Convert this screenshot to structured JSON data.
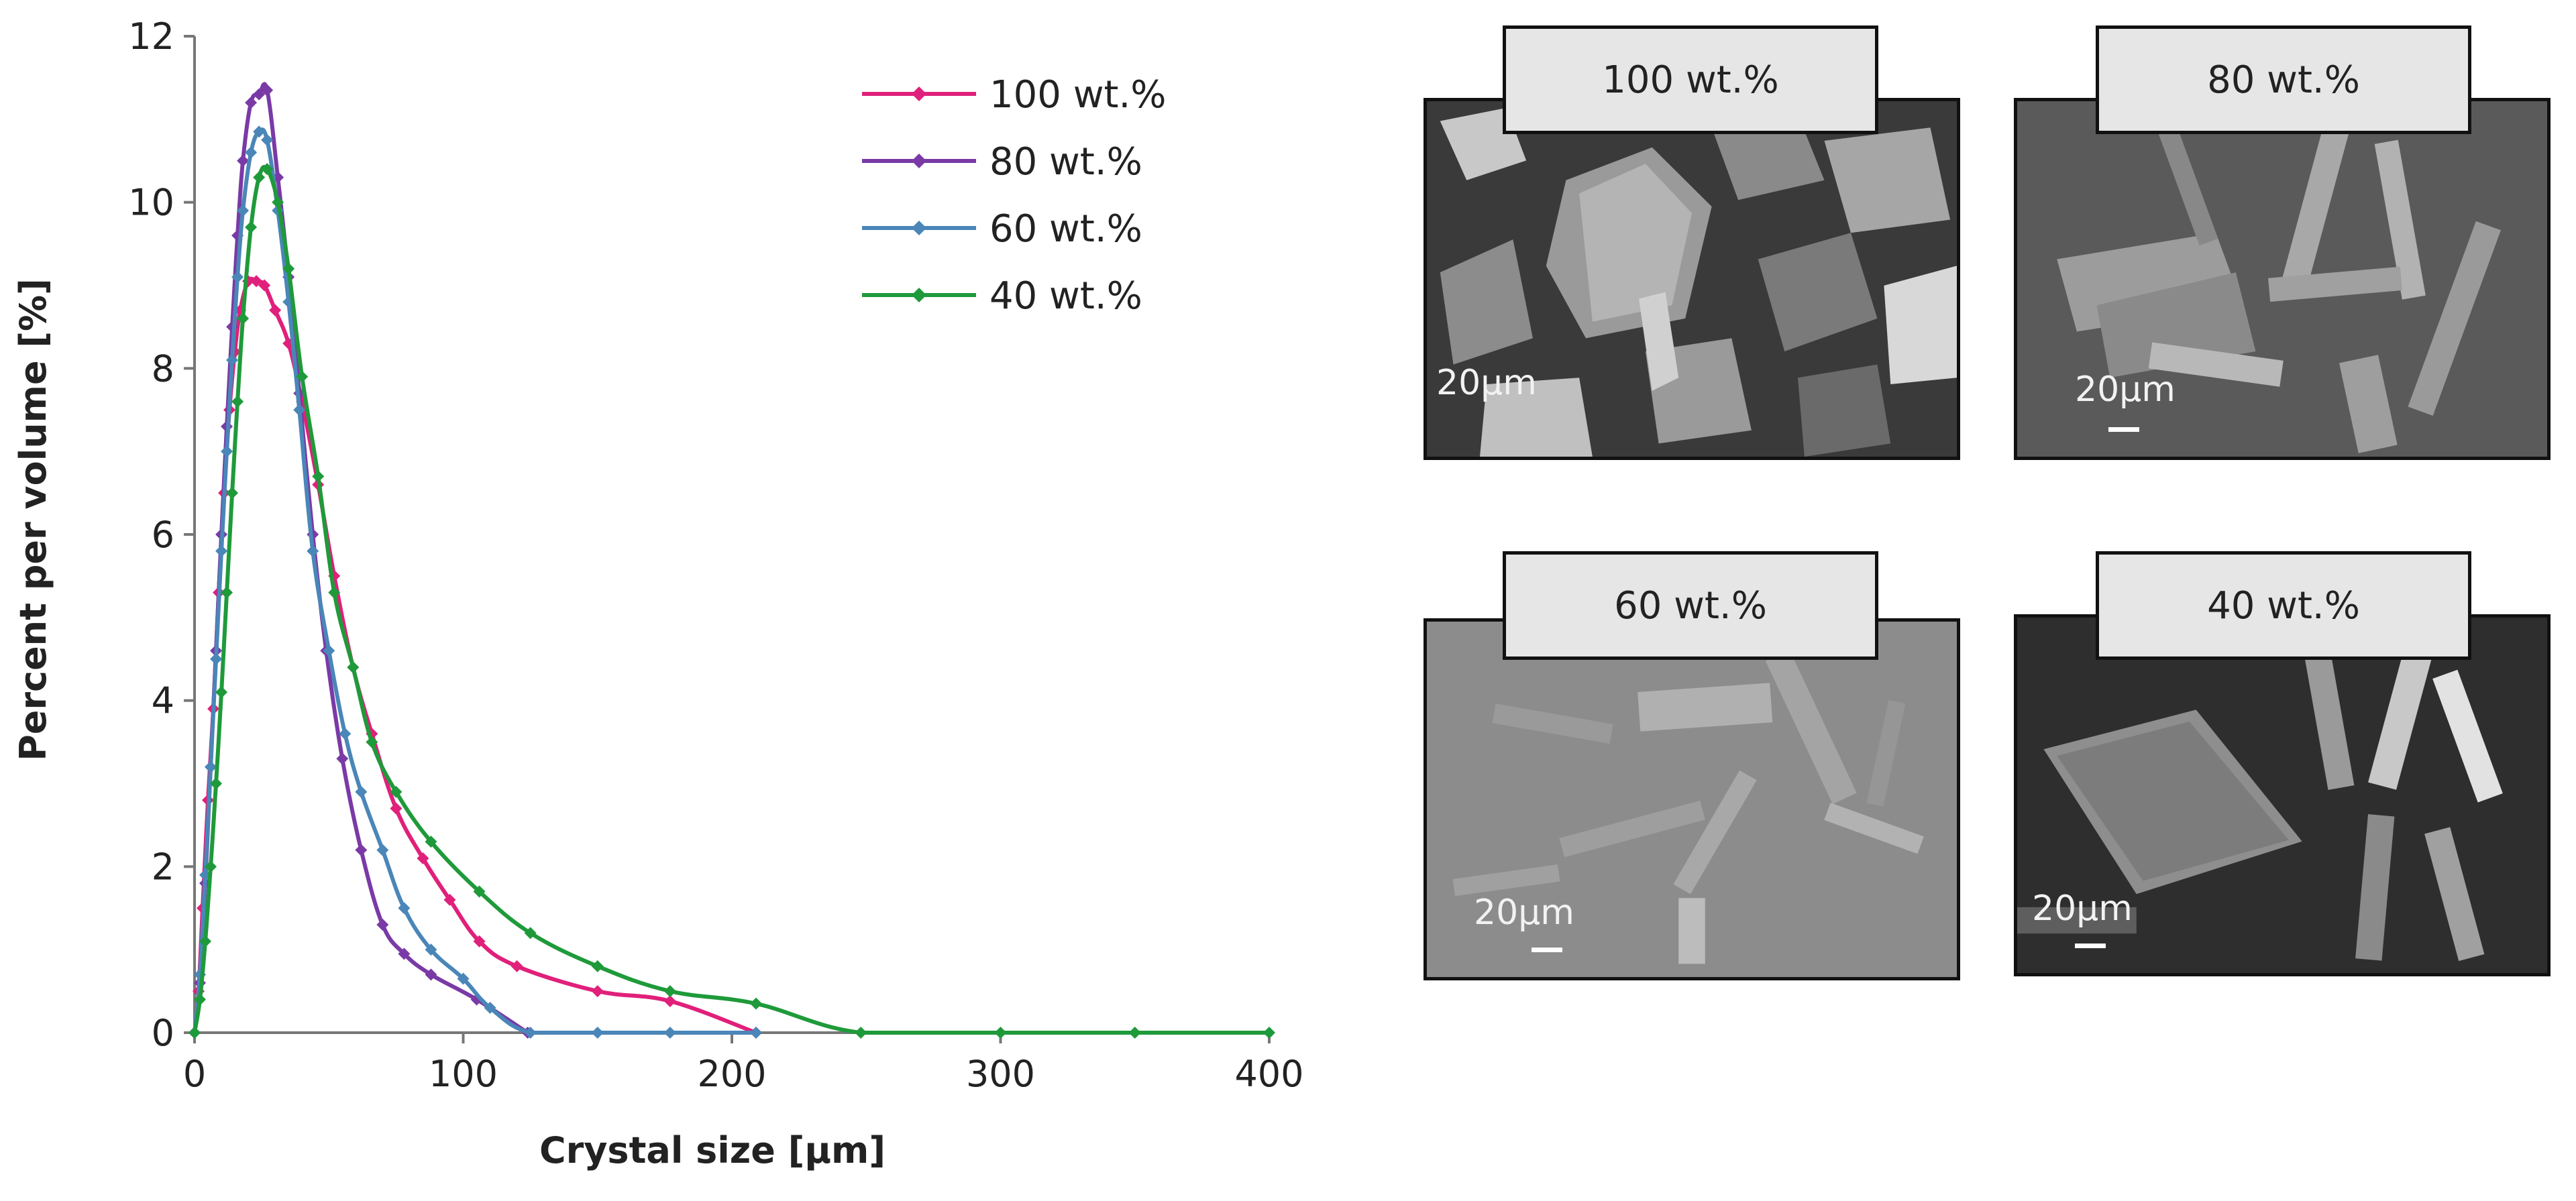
{
  "chart_data": {
    "type": "line",
    "xlabel": "Crystal size [µm]",
    "ylabel": "Percent per volume [%]",
    "xlim": [
      0,
      400
    ],
    "ylim": [
      0,
      12
    ],
    "x_ticks": [
      "0",
      "100",
      "200",
      "300",
      "400"
    ],
    "y_ticks": [
      "0",
      "2",
      "4",
      "6",
      "8",
      "10",
      "12"
    ],
    "grid": false,
    "legend_position": "top-right",
    "series": [
      {
        "name": "100 wt.%",
        "color": "#e0207a",
        "x": [
          0,
          1.5,
          3,
          5,
          7,
          9,
          11,
          13,
          15,
          17,
          20,
          23,
          26,
          30,
          35,
          40,
          46,
          52,
          59,
          66,
          75,
          85,
          95,
          106,
          120,
          150,
          177,
          209
        ],
        "y": [
          0,
          0.5,
          1.5,
          2.8,
          3.9,
          5.3,
          6.5,
          7.5,
          8.2,
          8.7,
          9.05,
          9.05,
          9.0,
          8.7,
          8.3,
          7.6,
          6.6,
          5.5,
          4.4,
          3.6,
          2.7,
          2.1,
          1.6,
          1.1,
          0.8,
          0.5,
          0.38,
          0
        ]
      },
      {
        "name": "80 wt.%",
        "color": "#7a3aa6",
        "x": [
          0,
          2,
          4,
          6,
          8,
          10,
          12,
          14,
          16,
          18,
          21,
          24,
          27,
          31,
          35,
          39,
          44,
          49,
          55,
          62,
          70,
          78,
          88,
          105,
          124
        ],
        "y": [
          0,
          0.6,
          1.8,
          3.2,
          4.6,
          6.0,
          7.3,
          8.5,
          9.6,
          10.5,
          11.2,
          11.3,
          11.35,
          10.3,
          9.1,
          7.7,
          6.0,
          4.6,
          3.3,
          2.2,
          1.3,
          0.95,
          0.7,
          0.4,
          0
        ]
      },
      {
        "name": "60 wt.%",
        "color": "#4a86b8",
        "x": [
          0,
          2,
          4,
          6,
          8,
          10,
          12,
          14,
          16,
          18,
          21,
          24,
          27,
          31,
          35,
          39,
          44,
          50,
          56,
          62,
          70,
          78,
          88,
          100,
          110,
          125,
          150,
          177,
          209
        ],
        "y": [
          0,
          0.7,
          1.9,
          3.2,
          4.5,
          5.8,
          7.0,
          8.1,
          9.1,
          9.9,
          10.6,
          10.85,
          10.75,
          9.9,
          8.8,
          7.5,
          5.8,
          4.6,
          3.6,
          2.9,
          2.2,
          1.5,
          1.0,
          0.65,
          0.3,
          0,
          0,
          0,
          0
        ]
      },
      {
        "name": "40 wt.%",
        "color": "#1f9a3a",
        "x": [
          0,
          2,
          4,
          6,
          8,
          10,
          12,
          14,
          16,
          18,
          21,
          24,
          27,
          31,
          35,
          40,
          46,
          52,
          59,
          66,
          75,
          88,
          106,
          125,
          150,
          177,
          209,
          248,
          300,
          350,
          400
        ],
        "y": [
          0,
          0.4,
          1.1,
          2.0,
          3.0,
          4.1,
          5.3,
          6.5,
          7.6,
          8.6,
          9.7,
          10.3,
          10.4,
          10.0,
          9.2,
          7.9,
          6.7,
          5.3,
          4.4,
          3.5,
          2.9,
          2.3,
          1.7,
          1.2,
          0.8,
          0.5,
          0.35,
          0,
          0,
          0,
          0
        ]
      }
    ]
  },
  "sem_panels": [
    {
      "label": "100 wt.%",
      "scale_text": "20µm",
      "scale_bar": false,
      "tone": "dark-mixed"
    },
    {
      "label": "80 wt.%",
      "scale_text": "20µm",
      "scale_bar": true,
      "tone": "gray-rods"
    },
    {
      "label": "60 wt.%",
      "scale_text": "20µm",
      "scale_bar": true,
      "tone": "light-rods"
    },
    {
      "label": "40 wt.%",
      "scale_text": "20µm",
      "scale_bar": true,
      "tone": "dark-plate"
    }
  ]
}
